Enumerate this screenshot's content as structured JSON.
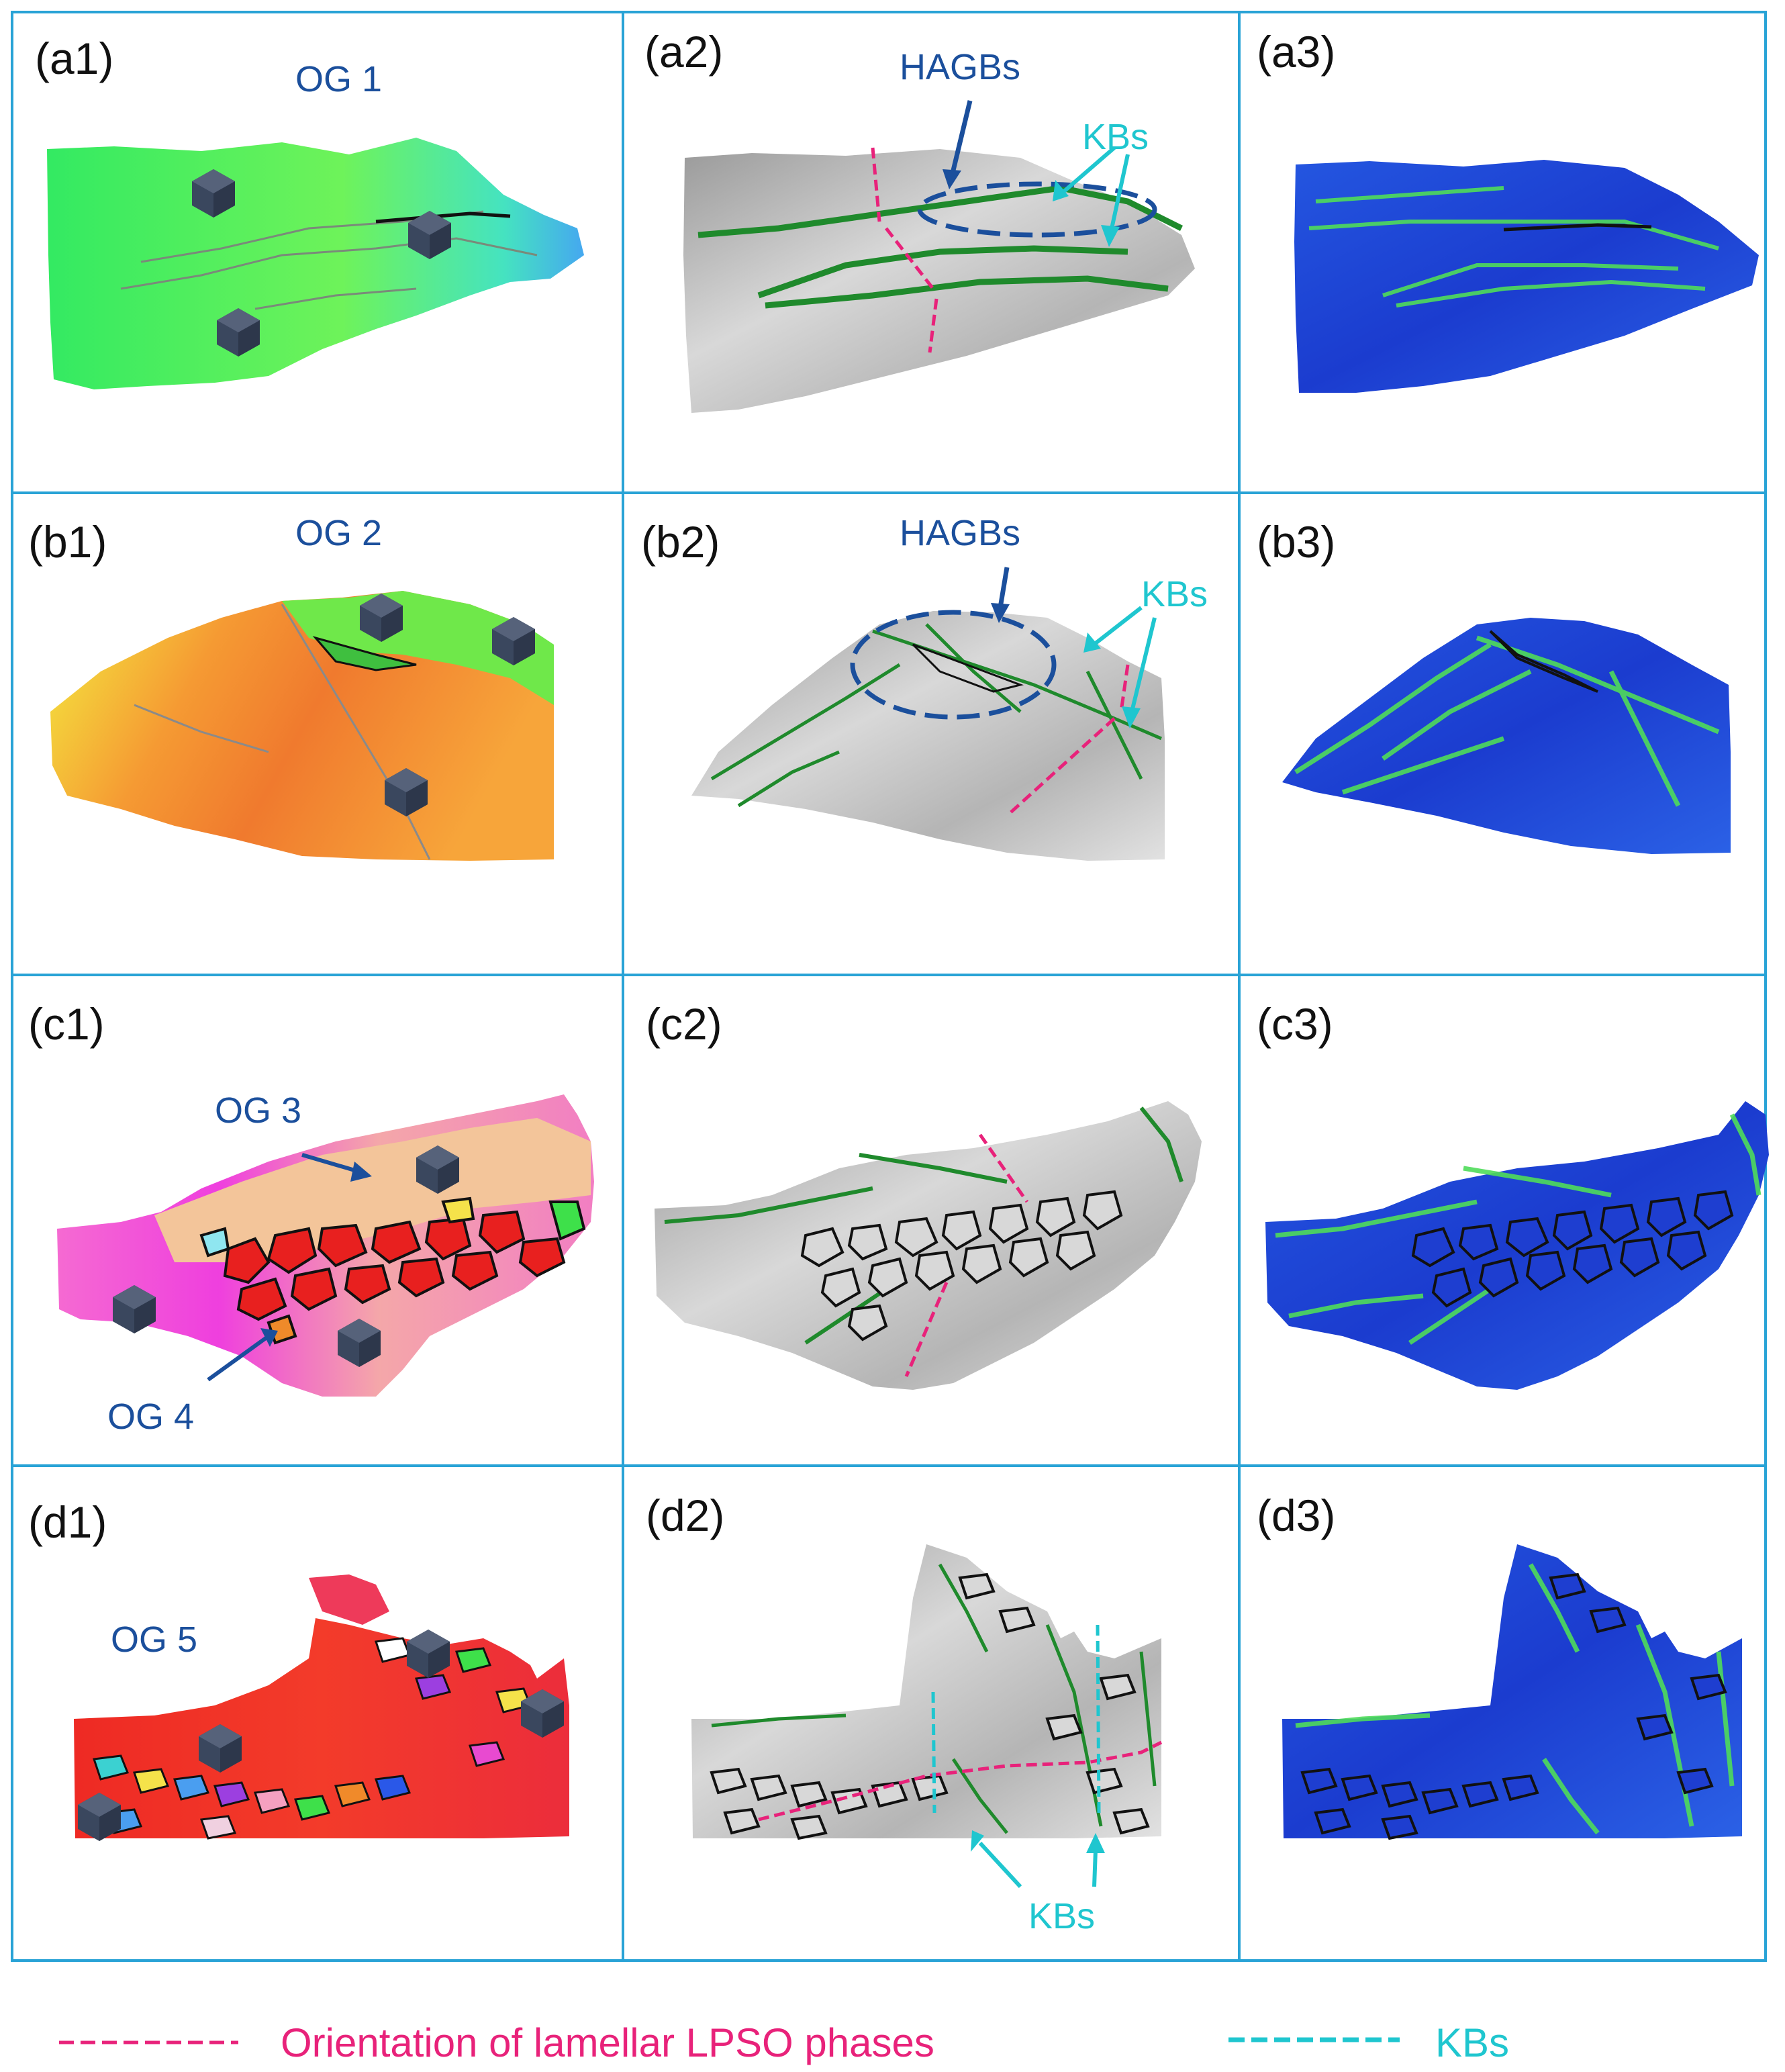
{
  "figure": {
    "colors": {
      "grid": "#29a3d6",
      "annotation_blue": "#1b4f9c",
      "annotation_cyan": "#1fc6cf",
      "lpso_magenta": "#e8227a",
      "boundary_green": "#1f8a2c",
      "cube": "#3a475e"
    },
    "panels": [
      {
        "id": "a1",
        "label": "(a1)"
      },
      {
        "id": "a2",
        "label": "(a2)"
      },
      {
        "id": "a3",
        "label": "(a3)"
      },
      {
        "id": "b1",
        "label": "(b1)"
      },
      {
        "id": "b2",
        "label": "(b2)"
      },
      {
        "id": "b3",
        "label": "(b3)"
      },
      {
        "id": "c1",
        "label": "(c1)"
      },
      {
        "id": "c2",
        "label": "(c2)"
      },
      {
        "id": "c3",
        "label": "(c3)"
      },
      {
        "id": "d1",
        "label": "(d1)"
      },
      {
        "id": "d2",
        "label": "(d2)"
      },
      {
        "id": "d3",
        "label": "(d3)"
      }
    ],
    "annotations": {
      "og1": "OG 1",
      "og2": "OG 2",
      "og3": "OG 3",
      "og4": "OG 4",
      "og5": "OG 5",
      "a2_hagbs": "HAGBs",
      "a2_kbs": "KBs",
      "b2_hagbs": "HAGBs",
      "b2_kbs": "KBs",
      "d2_kbs": "KBs"
    },
    "legend": {
      "lpso": "Orientation of lamellar LPSO phases",
      "kbs": "KBs"
    }
  }
}
